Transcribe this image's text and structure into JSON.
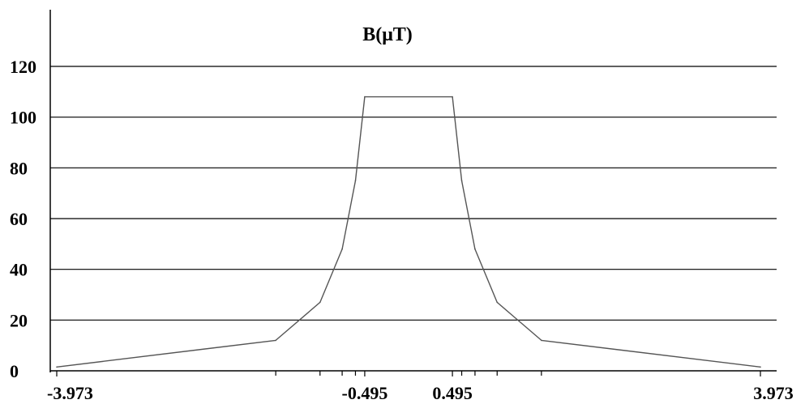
{
  "chart_data": {
    "type": "line",
    "title": "B(μT)",
    "xlabel": "",
    "ylabel": "",
    "ylim": [
      0,
      120
    ],
    "xlim": [
      -3.973,
      3.973
    ],
    "yticks": [
      0,
      20,
      40,
      60,
      80,
      100,
      120
    ],
    "xtick_labels": [
      {
        "value": -3.973,
        "label": "-3.973"
      },
      {
        "value": -0.495,
        "label": "-0.495"
      },
      {
        "value": 0.495,
        "label": "0.495"
      },
      {
        "value": 3.973,
        "label": "3.973"
      }
    ],
    "minor_xticks": [
      -1.5,
      -1.0,
      -0.75,
      -0.6,
      0.6,
      0.75,
      1.0,
      1.5
    ],
    "grid": "horizontal",
    "series": [
      {
        "x": [
          -3.973,
          -1.5,
          -1.0,
          -0.75,
          -0.6,
          -0.495,
          0.495,
          0.6,
          0.75,
          1.0,
          1.5,
          3.973
        ],
        "y": [
          1.5,
          12,
          27,
          48,
          75,
          108,
          108,
          75,
          48,
          27,
          12,
          1.5
        ]
      }
    ]
  }
}
